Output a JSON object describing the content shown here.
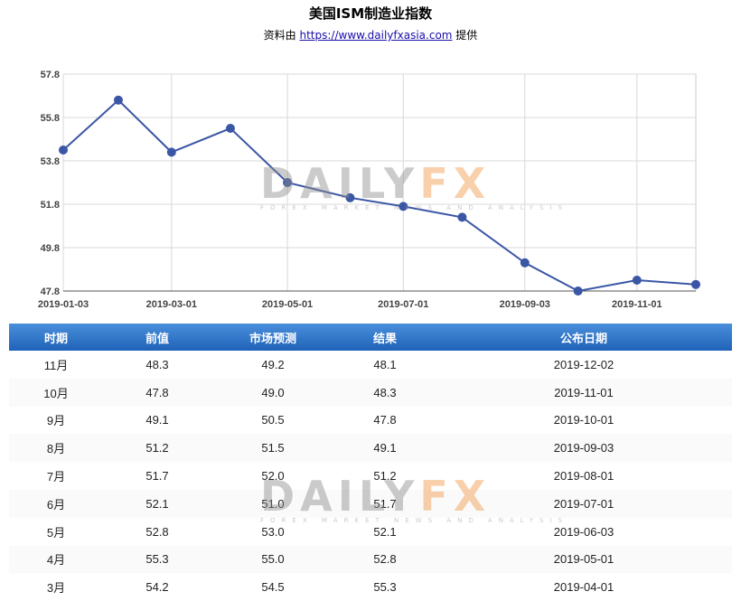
{
  "header": {
    "title": "美国ISM制造业指数",
    "source_prefix": "资料由 ",
    "source_link": "https://www.dailyfxasia.com",
    "source_suffix": " 提供"
  },
  "watermark": {
    "brand_a": "DAILY",
    "brand_b": "FX",
    "tagline": "FOREX MARKET NEWS AND ANALYSIS",
    "colors": {
      "gray": "#8c8c8c",
      "orange": "#f09646"
    }
  },
  "chart_data": {
    "type": "line",
    "x": [
      "2019-01-03",
      "2019-02-01",
      "2019-03-01",
      "2019-04-01",
      "2019-05-01",
      "2019-06-03",
      "2019-07-01",
      "2019-08-01",
      "2019-09-03",
      "2019-10-01",
      "2019-11-01",
      "2019-12-02"
    ],
    "series": [
      {
        "values": [
          54.3,
          56.6,
          54.2,
          55.3,
          52.8,
          52.1,
          51.7,
          51.2,
          49.1,
          47.8,
          48.3,
          48.1
        ],
        "color": "#3a56a5"
      }
    ],
    "yticks": [
      "57.8",
      "55.8",
      "53.8",
      "51.8",
      "49.8",
      "47.8"
    ],
    "xticks": [
      "2019-01-03",
      "2019-03-01",
      "2019-05-01",
      "2019-07-01",
      "2019-09-03",
      "2019-11-01"
    ],
    "ylim": [
      47.8,
      57.8
    ],
    "grid": true
  },
  "table": {
    "headers": [
      "时期",
      "前值",
      "市场预测",
      "结果",
      "公布日期"
    ],
    "rows": [
      [
        "11月",
        "48.3",
        "49.2",
        "48.1",
        "2019-12-02"
      ],
      [
        "10月",
        "47.8",
        "49.0",
        "48.3",
        "2019-11-01"
      ],
      [
        "9月",
        "49.1",
        "50.5",
        "47.8",
        "2019-10-01"
      ],
      [
        "8月",
        "51.2",
        "51.5",
        "49.1",
        "2019-09-03"
      ],
      [
        "7月",
        "51.7",
        "52.0",
        "51.2",
        "2019-08-01"
      ],
      [
        "6月",
        "52.1",
        "51.0",
        "51.7",
        "2019-07-01"
      ],
      [
        "5月",
        "52.8",
        "53.0",
        "52.1",
        "2019-06-03"
      ],
      [
        "4月",
        "55.3",
        "55.0",
        "52.8",
        "2019-05-01"
      ],
      [
        "3月",
        "54.2",
        "54.5",
        "55.3",
        "2019-04-01"
      ]
    ],
    "header_color": "#2b73c9"
  }
}
